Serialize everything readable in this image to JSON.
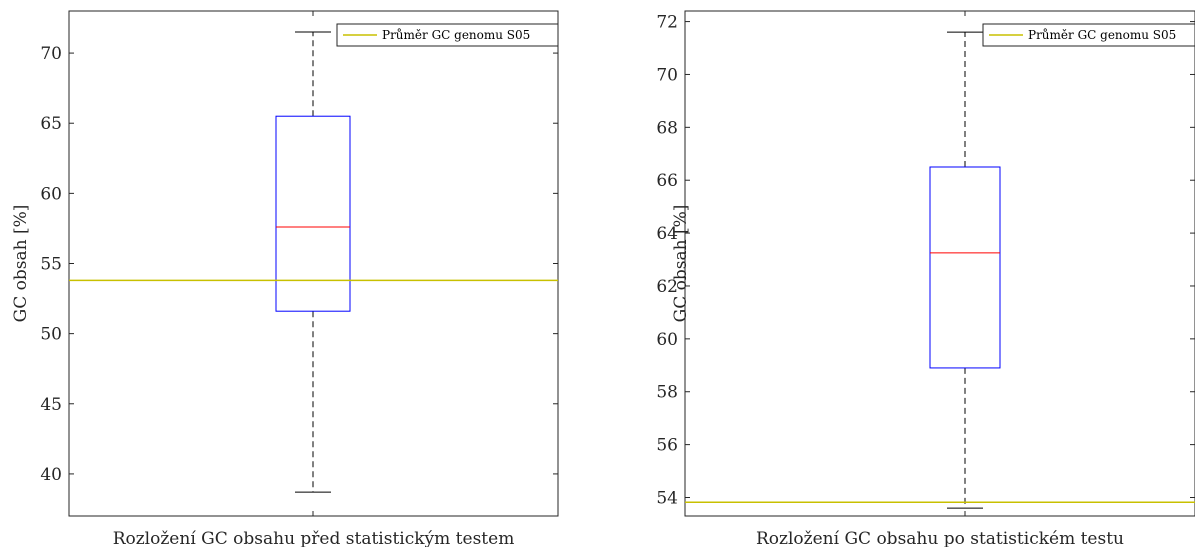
{
  "chart_data": [
    {
      "type": "box",
      "xlabel": "Rozložení GC obsahu před statistickým testem",
      "ylabel": "GC obsah [%]",
      "ylim": [
        37,
        73
      ],
      "yticks": [
        40,
        45,
        50,
        55,
        60,
        65,
        70
      ],
      "box": {
        "whisker_low": 38.7,
        "q1": 51.6,
        "median": 57.6,
        "q3": 65.5,
        "whisker_high": 71.5
      },
      "reference_line": {
        "name": "Průměr GC genomu S05",
        "value": 53.8
      },
      "legend": "top-right",
      "colors": {
        "box": "#0000ff",
        "median": "#ff0000",
        "whisker": "#000000",
        "reference": "#c8c000"
      }
    },
    {
      "type": "box",
      "xlabel": "Rozložení GC obsahu po statistickém testu",
      "ylabel": "GC obsah [%]",
      "ylim": [
        53.3,
        72.4
      ],
      "yticks": [
        54,
        56,
        58,
        60,
        62,
        64,
        66,
        68,
        70,
        72
      ],
      "box": {
        "whisker_low": 53.6,
        "q1": 58.9,
        "median": 63.25,
        "q3": 66.5,
        "whisker_high": 71.6
      },
      "reference_line": {
        "name": "Průměr GC genomu S05",
        "value": 53.82
      },
      "legend": "top-right",
      "colors": {
        "box": "#0000ff",
        "median": "#ff0000",
        "whisker": "#000000",
        "reference": "#c8c000"
      }
    }
  ]
}
